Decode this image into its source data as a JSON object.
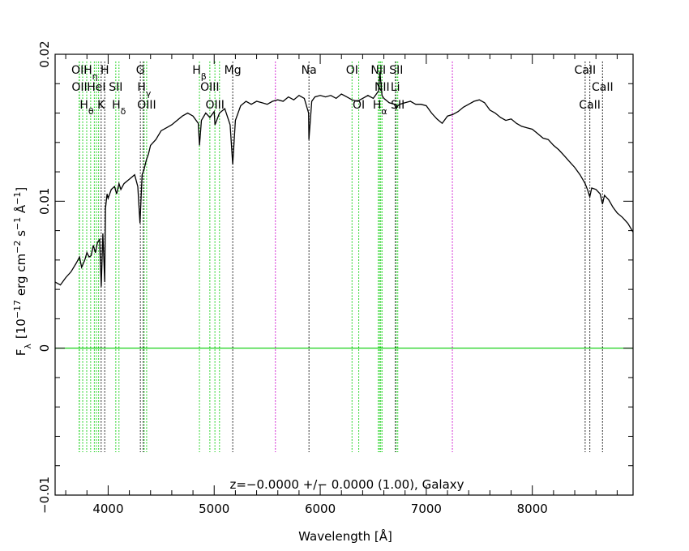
{
  "chart_data": {
    "type": "line",
    "title": "",
    "xlabel": "Wavelength [Å]",
    "ylabel": "F_λ [10^-17 erg cm^-2 s^-1 Å^-1]",
    "ylabel_parts": {
      "f": "F",
      "f_sub": "λ",
      "open": "[10",
      "exp1": "−17",
      "erg": " erg cm",
      "exp2": "−2",
      "s": " s",
      "exp3": "−1",
      "ang": " Å",
      "exp4": "−1",
      "close": "]"
    },
    "xlim": [
      3500,
      8950
    ],
    "ylim": [
      -0.01,
      0.02
    ],
    "grid": false,
    "x_ticks": [
      {
        "value": 4000,
        "label": "4000"
      },
      {
        "value": 5000,
        "label": "5000"
      },
      {
        "value": 6000,
        "label": "6000"
      },
      {
        "value": 7000,
        "label": "7000"
      },
      {
        "value": 8000,
        "label": "8000"
      }
    ],
    "y_ticks": [
      {
        "value": -0.01,
        "label": "−0.01"
      },
      {
        "value": 0,
        "label": "0"
      },
      {
        "value": 0.01,
        "label": "0.01"
      },
      {
        "value": 0.02,
        "label": "0.02"
      }
    ],
    "annotation": "z=−0.0000 +/− 0.0000 (1.00), Galaxy",
    "colors": {
      "spectrum": "#000000",
      "zero_line": "#00cc00",
      "emission": "#00cc00",
      "absorption": "#000000",
      "sky": "#cc00cc"
    },
    "zero_line": 0,
    "spectrum": {
      "x": [
        3500,
        3550,
        3600,
        3650,
        3700,
        3730,
        3750,
        3780,
        3800,
        3820,
        3840,
        3860,
        3880,
        3900,
        3920,
        3935,
        3950,
        3968,
        3975,
        3990,
        4000,
        4030,
        4060,
        4080,
        4102,
        4120,
        4150,
        4200,
        4250,
        4280,
        4300,
        4320,
        4340,
        4360,
        4380,
        4400,
        4450,
        4500,
        4550,
        4600,
        4650,
        4700,
        4750,
        4800,
        4850,
        4861,
        4880,
        4920,
        4959,
        5000,
        5007,
        5050,
        5100,
        5150,
        5175,
        5200,
        5250,
        5300,
        5350,
        5400,
        5450,
        5500,
        5550,
        5600,
        5650,
        5700,
        5750,
        5800,
        5850,
        5890,
        5893,
        5920,
        5950,
        6000,
        6050,
        6100,
        6150,
        6200,
        6250,
        6300,
        6350,
        6400,
        6450,
        6500,
        6550,
        6563,
        6583,
        6600,
        6650,
        6700,
        6717,
        6731,
        6750,
        6800,
        6850,
        6900,
        6950,
        7000,
        7050,
        7100,
        7150,
        7200,
        7250,
        7300,
        7350,
        7400,
        7450,
        7500,
        7550,
        7600,
        7650,
        7700,
        7750,
        7800,
        7850,
        7900,
        7950,
        8000,
        8050,
        8100,
        8150,
        8200,
        8250,
        8300,
        8350,
        8400,
        8450,
        8498,
        8520,
        8542,
        8560,
        8600,
        8640,
        8662,
        8680,
        8720,
        8760,
        8800,
        8850,
        8900,
        8950
      ],
      "y": [
        0.0045,
        0.0043,
        0.0048,
        0.0052,
        0.0058,
        0.0062,
        0.0055,
        0.006,
        0.0065,
        0.0062,
        0.0063,
        0.007,
        0.0065,
        0.0072,
        0.0074,
        0.0042,
        0.0078,
        0.0045,
        0.0095,
        0.0105,
        0.0102,
        0.0108,
        0.011,
        0.0105,
        0.0112,
        0.0108,
        0.0112,
        0.0115,
        0.0118,
        0.011,
        0.0085,
        0.0118,
        0.0122,
        0.0128,
        0.0132,
        0.0138,
        0.0142,
        0.0148,
        0.015,
        0.0152,
        0.0155,
        0.0158,
        0.016,
        0.0158,
        0.0153,
        0.0138,
        0.0155,
        0.016,
        0.0157,
        0.0161,
        0.0152,
        0.016,
        0.0163,
        0.0152,
        0.0125,
        0.0155,
        0.0165,
        0.0168,
        0.0166,
        0.0168,
        0.0167,
        0.0166,
        0.0168,
        0.0169,
        0.0168,
        0.0171,
        0.0169,
        0.0172,
        0.017,
        0.016,
        0.0142,
        0.0168,
        0.0171,
        0.0172,
        0.0171,
        0.0172,
        0.017,
        0.0173,
        0.0171,
        0.0169,
        0.0168,
        0.017,
        0.0172,
        0.017,
        0.0175,
        0.0188,
        0.0172,
        0.017,
        0.0167,
        0.0166,
        0.0163,
        0.0165,
        0.0166,
        0.0167,
        0.0168,
        0.0166,
        0.0166,
        0.0165,
        0.016,
        0.0156,
        0.0153,
        0.0158,
        0.0159,
        0.0161,
        0.0164,
        0.0166,
        0.0168,
        0.0169,
        0.0167,
        0.0162,
        0.016,
        0.0157,
        0.0155,
        0.0156,
        0.0153,
        0.0151,
        0.015,
        0.0149,
        0.0146,
        0.0143,
        0.0142,
        0.0138,
        0.0135,
        0.0131,
        0.0127,
        0.0123,
        0.0118,
        0.0112,
        0.0108,
        0.0103,
        0.0109,
        0.0108,
        0.0105,
        0.0098,
        0.0104,
        0.0101,
        0.0096,
        0.0092,
        0.0089,
        0.0085,
        0.0079
      ]
    },
    "line_markers": [
      {
        "label": "OII",
        "sub": "",
        "x": 3727,
        "row": 0,
        "kind": "emission"
      },
      {
        "label": "H",
        "sub": "η",
        "x": 3835,
        "row": 0,
        "kind": "emission"
      },
      {
        "label": "H",
        "sub": "",
        "x": 3968,
        "row": 0,
        "kind": "absorption"
      },
      {
        "label": "G",
        "sub": "",
        "x": 4304,
        "row": 0,
        "kind": "absorption"
      },
      {
        "label": "H",
        "sub": "β",
        "x": 4861,
        "row": 0,
        "kind": "emission"
      },
      {
        "label": "Mg",
        "sub": "",
        "x": 5175,
        "row": 0,
        "kind": "absorption"
      },
      {
        "label": "Na",
        "sub": "",
        "x": 5894,
        "row": 0,
        "kind": "absorption"
      },
      {
        "label": "OI",
        "sub": "",
        "x": 6300,
        "row": 0,
        "kind": "emission"
      },
      {
        "label": "NII",
        "sub": "",
        "x": 6548,
        "row": 0,
        "kind": "emission"
      },
      {
        "label": "SII",
        "sub": "",
        "x": 6717,
        "row": 0,
        "kind": "emission"
      },
      {
        "label": "CaII",
        "sub": "",
        "x": 8498,
        "row": 0,
        "kind": "absorption"
      },
      {
        "label": "OII",
        "sub": "",
        "x": 3729,
        "row": 1,
        "kind": "emission"
      },
      {
        "label": "HeI",
        "sub": "",
        "x": 3889,
        "row": 1,
        "kind": "emission"
      },
      {
        "label": "SII",
        "sub": "",
        "x": 4072,
        "row": 1,
        "kind": "emission"
      },
      {
        "label": "H",
        "sub": "γ",
        "x": 4340,
        "row": 1,
        "kind": "emission"
      },
      {
        "label": "OIII",
        "sub": "",
        "x": 4959,
        "row": 1,
        "kind": "emission"
      },
      {
        "label": "NII",
        "sub": "",
        "x": 6583,
        "row": 1,
        "kind": "emission"
      },
      {
        "label": "Li",
        "sub": "",
        "x": 6708,
        "row": 1,
        "kind": "absorption"
      },
      {
        "label": "CaII",
        "sub": "",
        "x": 8662,
        "row": 1,
        "kind": "absorption"
      },
      {
        "label": "H",
        "sub": "θ",
        "x": 3798,
        "row": 2,
        "kind": "emission"
      },
      {
        "label": "K",
        "sub": "",
        "x": 3934,
        "row": 2,
        "kind": "absorption"
      },
      {
        "label": "H",
        "sub": "δ",
        "x": 4102,
        "row": 2,
        "kind": "emission"
      },
      {
        "label": "OIII",
        "sub": "",
        "x": 4363,
        "row": 2,
        "kind": "emission"
      },
      {
        "label": "OIII",
        "sub": "",
        "x": 5007,
        "row": 2,
        "kind": "emission"
      },
      {
        "label": "OI",
        "sub": "",
        "x": 6363,
        "row": 2,
        "kind": "emission"
      },
      {
        "label": "H",
        "sub": "α",
        "x": 6563,
        "row": 2,
        "kind": "emission"
      },
      {
        "label": "SII",
        "sub": "",
        "x": 6731,
        "row": 2,
        "kind": "emission"
      },
      {
        "label": "CaII",
        "sub": "",
        "x": 8542,
        "row": 2,
        "kind": "absorption"
      }
    ],
    "extra_lines": [
      {
        "x": 3760,
        "kind": "emission"
      },
      {
        "x": 3870,
        "kind": "emission"
      },
      {
        "x": 3910,
        "kind": "emission"
      },
      {
        "x": 4330,
        "kind": "absorption"
      },
      {
        "x": 5050,
        "kind": "emission"
      },
      {
        "x": 6550,
        "kind": "emission"
      },
      {
        "x": 6570,
        "kind": "emission"
      },
      {
        "x": 5577,
        "kind": "sky"
      },
      {
        "x": 7246,
        "kind": "sky"
      }
    ]
  }
}
